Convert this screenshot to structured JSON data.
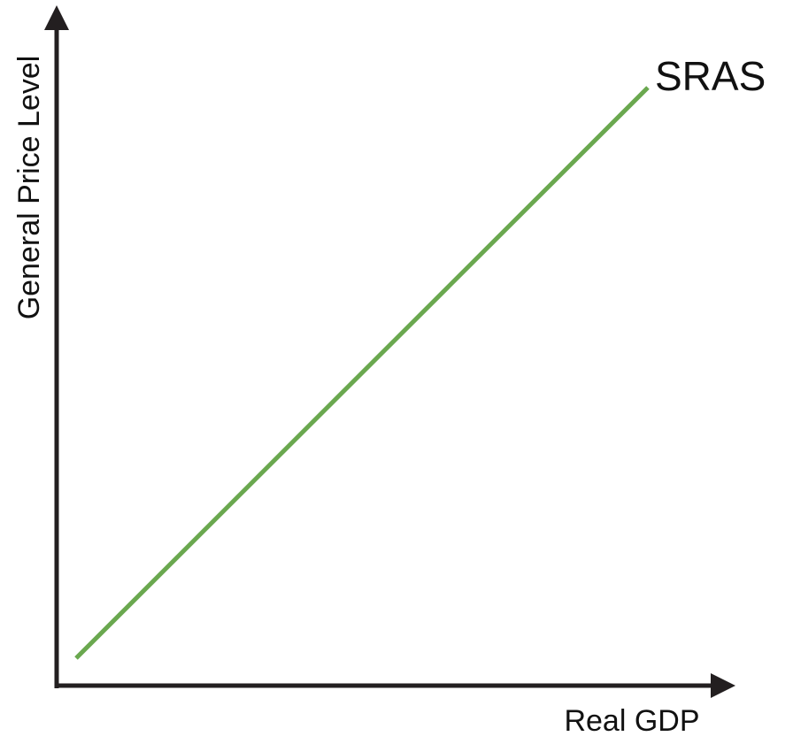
{
  "diagram": {
    "axes": {
      "x_label": "Real GDP",
      "y_label": "General Price Level",
      "color": "#231f20"
    },
    "curve": {
      "label": "SRAS",
      "color": "#6aa84f"
    }
  }
}
